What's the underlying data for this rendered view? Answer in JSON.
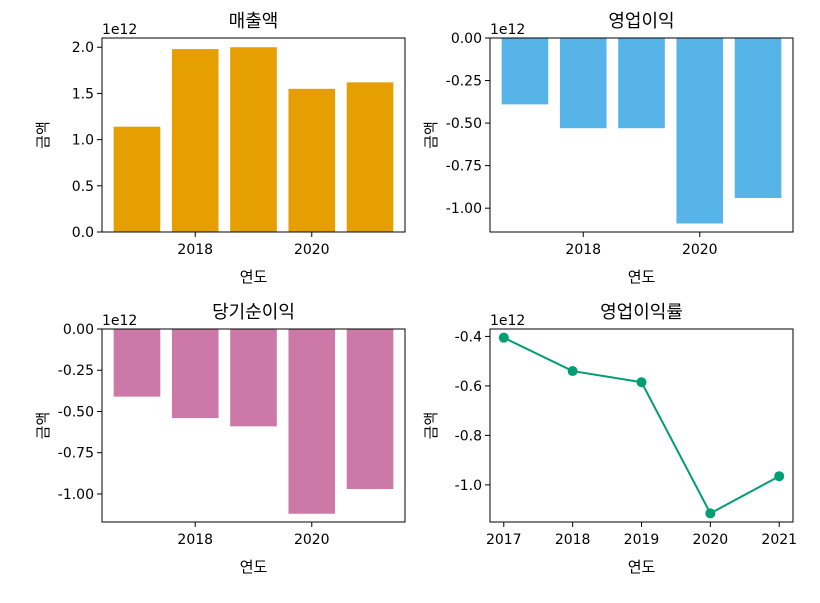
{
  "figure": "financial-subplots",
  "chart_data": [
    {
      "id": "revenue",
      "type": "bar",
      "title": "매출액",
      "xlabel": "연도",
      "ylabel": "금액",
      "offset_text": "1e12",
      "color": "#E69F00",
      "categories": [
        2017,
        2018,
        2019,
        2020,
        2021
      ],
      "values": [
        1.14,
        1.98,
        2.0,
        1.55,
        1.62
      ],
      "xlim": [
        2016.4,
        2021.6
      ],
      "ylim": [
        0,
        2.1
      ],
      "xticks": [
        2018,
        2020
      ],
      "xtick_labels": [
        "2018",
        "2020"
      ],
      "yticks": [
        0,
        0.5,
        1.0,
        1.5,
        2.0
      ],
      "ytick_labels": [
        "0.0",
        "0.5",
        "1.0",
        "1.5",
        "2.0"
      ]
    },
    {
      "id": "operating-profit",
      "type": "bar",
      "title": "영업이익",
      "xlabel": "연도",
      "ylabel": "금액",
      "offset_text": "1e12",
      "color": "#56B4E9",
      "categories": [
        2017,
        2018,
        2019,
        2020,
        2021
      ],
      "values": [
        -0.39,
        -0.53,
        -0.53,
        -1.09,
        -0.94
      ],
      "xlim": [
        2016.4,
        2021.6
      ],
      "ylim": [
        -1.14,
        0
      ],
      "xticks": [
        2018,
        2020
      ],
      "xtick_labels": [
        "2018",
        "2020"
      ],
      "yticks": [
        0,
        -0.25,
        -0.5,
        -0.75,
        -1.0
      ],
      "ytick_labels": [
        "0.00",
        "-0.25",
        "-0.50",
        "-0.75",
        "-1.00"
      ]
    },
    {
      "id": "net-income",
      "type": "bar",
      "title": "당기순이익",
      "xlabel": "연도",
      "ylabel": "금액",
      "offset_text": "1e12",
      "color": "#CC79A7",
      "categories": [
        2017,
        2018,
        2019,
        2020,
        2021
      ],
      "values": [
        -0.41,
        -0.54,
        -0.59,
        -1.12,
        -0.97
      ],
      "xlim": [
        2016.4,
        2021.6
      ],
      "ylim": [
        -1.17,
        0
      ],
      "xticks": [
        2018,
        2020
      ],
      "xtick_labels": [
        "2018",
        "2020"
      ],
      "yticks": [
        0,
        -0.25,
        -0.5,
        -0.75,
        -1.0
      ],
      "ytick_labels": [
        "0.00",
        "-0.25",
        "-0.50",
        "-0.75",
        "-1.00"
      ]
    },
    {
      "id": "operating-margin",
      "type": "line",
      "title": "영업이익률",
      "xlabel": "연도",
      "ylabel": "금액",
      "offset_text": "1e12",
      "color": "#009E73",
      "x": [
        2017,
        2018,
        2019,
        2020,
        2021
      ],
      "values": [
        -0.405,
        -0.54,
        -0.585,
        -1.115,
        -0.965
      ],
      "xlim": [
        2016.8,
        2021.2
      ],
      "ylim": [
        -1.15,
        -0.37
      ],
      "xticks": [
        2017,
        2018,
        2019,
        2020,
        2021
      ],
      "xtick_labels": [
        "2017",
        "2018",
        "2019",
        "2020",
        "2021"
      ],
      "yticks": [
        -0.4,
        -0.6,
        -0.8,
        -1.0
      ],
      "ytick_labels": [
        "-0.4",
        "-0.6",
        "-0.8",
        "-1.0"
      ]
    }
  ]
}
